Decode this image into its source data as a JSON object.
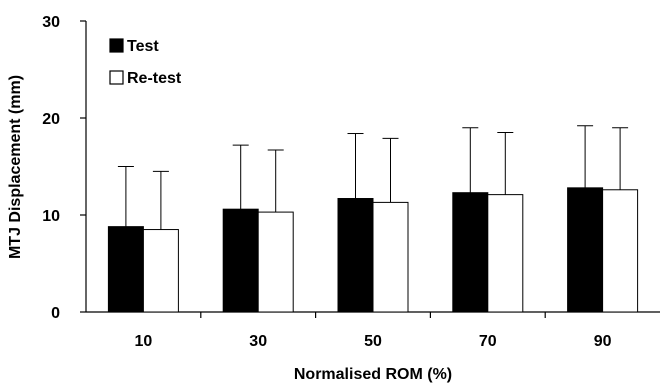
{
  "chart_data": {
    "type": "bar",
    "title": "",
    "xlabel": "Normalised ROM (%)",
    "ylabel": "MTJ Displacement (mm)",
    "categories": [
      "10",
      "30",
      "50",
      "70",
      "90"
    ],
    "ylim": [
      0,
      30
    ],
    "yticks": [
      "0",
      "10",
      "20",
      "30"
    ],
    "grid": false,
    "legend_position": "top-left",
    "series": [
      {
        "name": "Test",
        "color": "#000000",
        "values": [
          8.8,
          10.6,
          11.7,
          12.3,
          12.8
        ],
        "error_upper": [
          6.2,
          6.6,
          6.7,
          6.7,
          6.4
        ]
      },
      {
        "name": "Re-test",
        "color": "#ffffff",
        "values": [
          8.5,
          10.3,
          11.3,
          12.1,
          12.6
        ],
        "error_upper": [
          6.0,
          6.4,
          6.6,
          6.4,
          6.4
        ]
      }
    ]
  }
}
